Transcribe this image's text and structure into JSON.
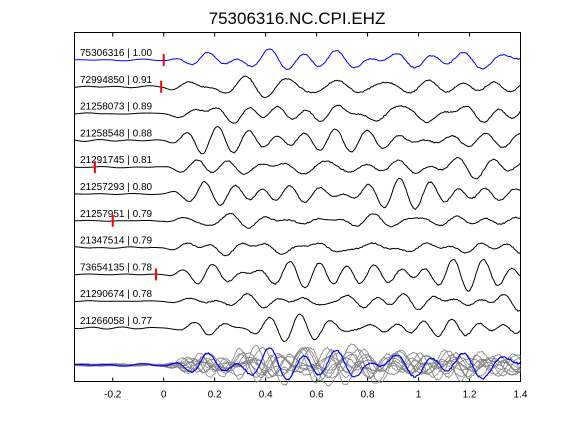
{
  "chart_data": {
    "type": "line",
    "title": "75306316.NC.CPI.EHZ",
    "xlabel": "",
    "ylabel": "",
    "xlim": [
      -0.35,
      1.4
    ],
    "xticks": [
      -0.2,
      0,
      0.2,
      0.4,
      0.6,
      0.8,
      1,
      1.2,
      1.4
    ],
    "xtick_labels": [
      "-0.2",
      "0",
      "0.2",
      "0.4",
      "0.6",
      "0.8",
      "1",
      "1.2",
      "1.4"
    ],
    "grid": false,
    "colors": {
      "master": "#0000ff",
      "trace": "#000000",
      "pick": "#ff0000",
      "stack": "#808080"
    },
    "series": [
      {
        "name": "75306316 | 1.00",
        "pick_x": 0.0,
        "master": true
      },
      {
        "name": "72994850 | 0.91",
        "pick_x": -0.01
      },
      {
        "name": "21258073 | 0.89"
      },
      {
        "name": "21258548 | 0.88"
      },
      {
        "name": "21291745 | 0.81",
        "pick_x": -0.27
      },
      {
        "name": "21257293 | 0.80"
      },
      {
        "name": "21257951 | 0.79",
        "pick_x": -0.2
      },
      {
        "name": "21347514 | 0.79"
      },
      {
        "name": "73654135 | 0.78",
        "pick_x": -0.03
      },
      {
        "name": "21290674 | 0.78"
      },
      {
        "name": "21266058 | 0.77"
      }
    ],
    "stack": {
      "traces": 11,
      "overlay_of_all": true
    }
  }
}
